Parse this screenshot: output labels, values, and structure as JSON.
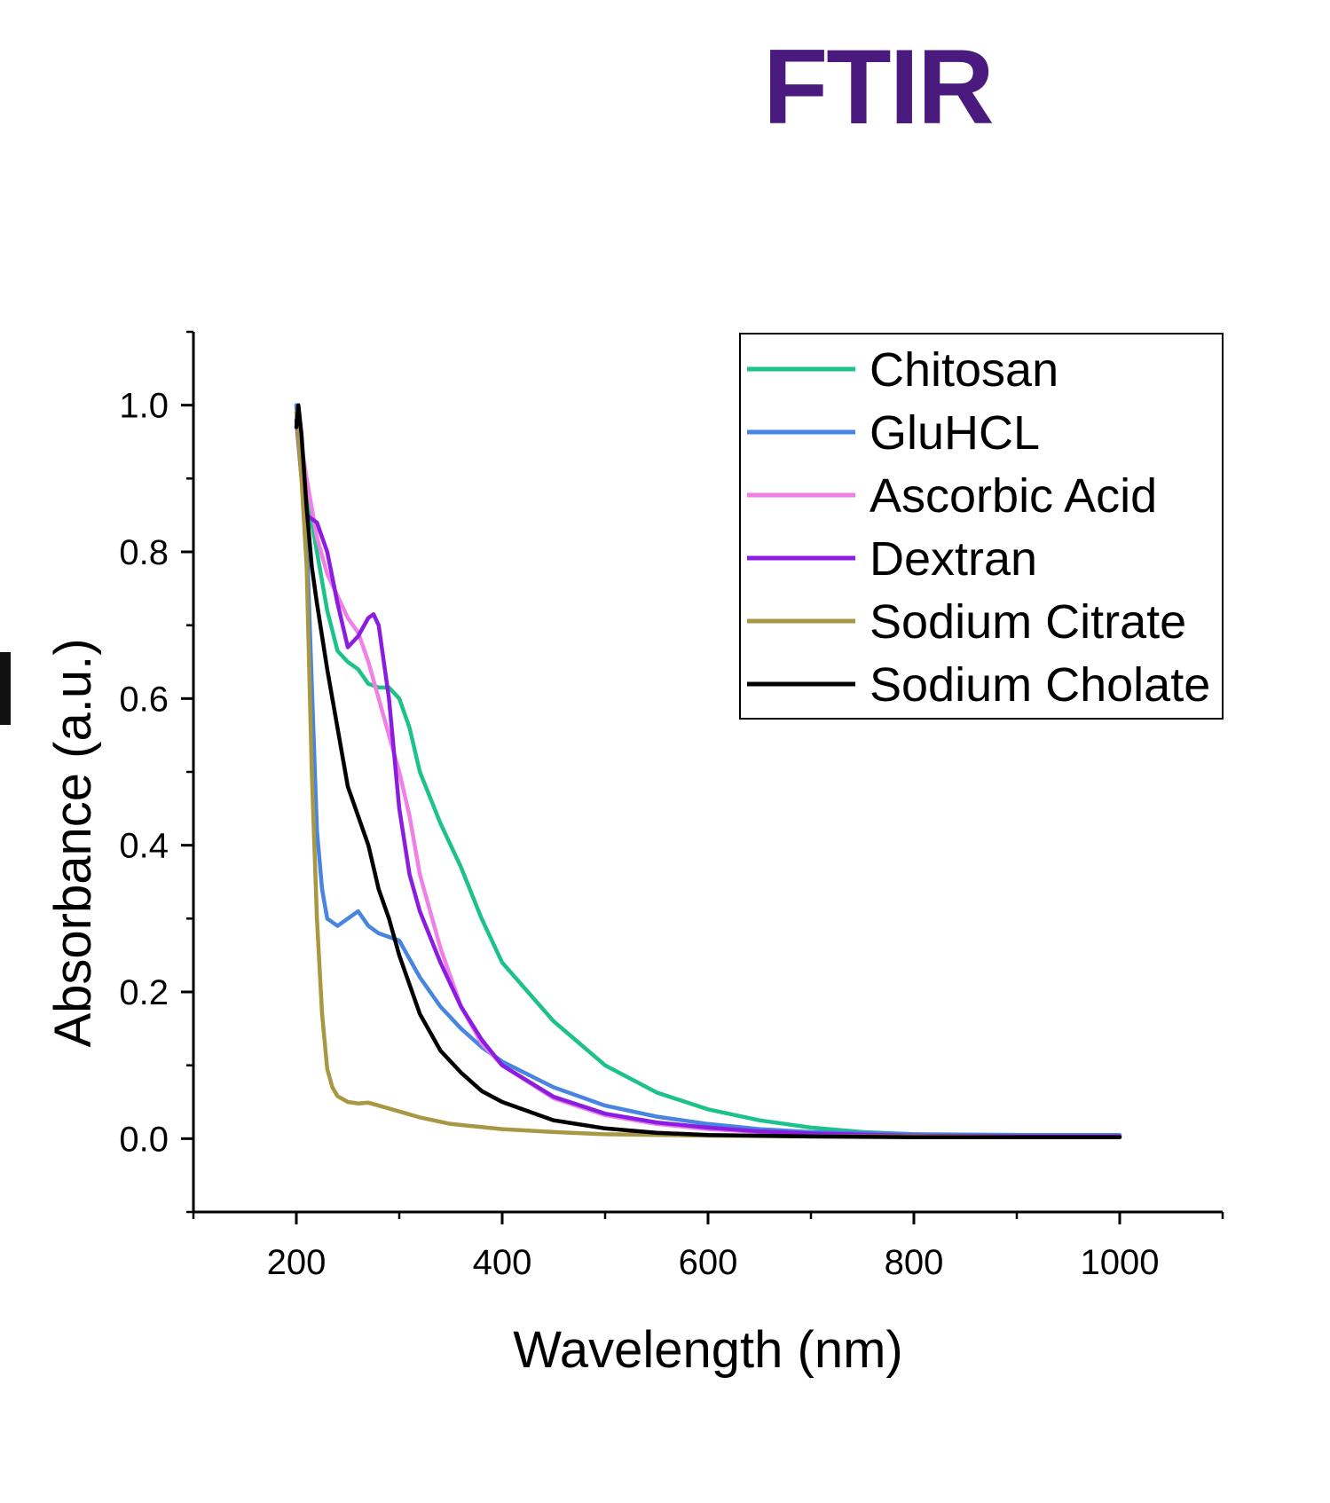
{
  "title": "FTIR",
  "colors": {
    "title": "#4b1a7f",
    "axis": "#000000"
  },
  "chart_data": {
    "type": "line",
    "xlabel": "Wavelength (nm)",
    "ylabel": "Absorbance (a.u.)",
    "xlim": [
      100,
      1100
    ],
    "ylim": [
      -0.1,
      1.1
    ],
    "xticks": [
      200,
      400,
      600,
      800,
      1000
    ],
    "xticks_minor": [
      100,
      300,
      500,
      700,
      900,
      1100
    ],
    "yticks": [
      0.0,
      0.2,
      0.4,
      0.6,
      0.8,
      1.0
    ],
    "yticks_minor": [
      -0.1,
      0.1,
      0.3,
      0.5,
      0.7,
      0.9,
      1.1
    ],
    "ytick_labels": [
      "0.0",
      "0.2",
      "0.4",
      "0.6",
      "0.8",
      "1.0"
    ],
    "xtick_labels": [
      "200",
      "400",
      "600",
      "800",
      "1000"
    ],
    "grid": false,
    "legend_position": "top-right",
    "series": [
      {
        "name": "Chitosan",
        "color": "#1dc28a",
        "x": [
          200,
          210,
          220,
          230,
          240,
          250,
          260,
          270,
          280,
          290,
          300,
          310,
          320,
          340,
          360,
          380,
          400,
          450,
          500,
          550,
          600,
          650,
          700,
          750,
          800,
          850,
          900,
          950,
          1000
        ],
        "y": [
          1.0,
          0.88,
          0.8,
          0.72,
          0.665,
          0.65,
          0.64,
          0.62,
          0.615,
          0.615,
          0.6,
          0.56,
          0.5,
          0.43,
          0.37,
          0.3,
          0.24,
          0.16,
          0.1,
          0.063,
          0.04,
          0.025,
          0.015,
          0.009,
          0.006,
          0.004,
          0.003,
          0.003,
          0.003
        ]
      },
      {
        "name": "GluHCL",
        "color": "#4785e0",
        "x": [
          200,
          205,
          210,
          215,
          220,
          225,
          230,
          240,
          250,
          260,
          270,
          280,
          290,
          300,
          310,
          320,
          340,
          360,
          380,
          400,
          450,
          500,
          550,
          600,
          650,
          700,
          800,
          900,
          1000
        ],
        "y": [
          1.0,
          0.93,
          0.82,
          0.62,
          0.42,
          0.34,
          0.3,
          0.29,
          0.3,
          0.31,
          0.29,
          0.28,
          0.275,
          0.27,
          0.245,
          0.22,
          0.18,
          0.15,
          0.125,
          0.105,
          0.07,
          0.045,
          0.03,
          0.02,
          0.013,
          0.009,
          0.006,
          0.005,
          0.005
        ]
      },
      {
        "name": "Ascorbic Acid",
        "color": "#f080e6",
        "x": [
          200,
          210,
          220,
          230,
          240,
          250,
          260,
          270,
          280,
          290,
          300,
          310,
          320,
          340,
          360,
          380,
          400,
          450,
          500,
          550,
          600,
          650,
          700,
          800,
          900,
          1000
        ],
        "y": [
          0.99,
          0.9,
          0.82,
          0.77,
          0.74,
          0.71,
          0.69,
          0.65,
          0.6,
          0.55,
          0.5,
          0.44,
          0.36,
          0.26,
          0.18,
          0.13,
          0.1,
          0.055,
          0.032,
          0.02,
          0.013,
          0.009,
          0.006,
          0.004,
          0.003,
          0.003
        ]
      },
      {
        "name": "Dextran",
        "color": "#8a1de0",
        "x": [
          200,
          205,
          210,
          215,
          220,
          230,
          240,
          250,
          260,
          270,
          275,
          280,
          290,
          300,
          310,
          320,
          340,
          360,
          380,
          400,
          450,
          500,
          550,
          600,
          650,
          700,
          800,
          900,
          1000
        ],
        "y": [
          0.98,
          0.9,
          0.85,
          0.845,
          0.84,
          0.8,
          0.73,
          0.67,
          0.685,
          0.71,
          0.715,
          0.7,
          0.6,
          0.45,
          0.36,
          0.31,
          0.24,
          0.18,
          0.135,
          0.1,
          0.057,
          0.034,
          0.022,
          0.015,
          0.01,
          0.007,
          0.004,
          0.003,
          0.003
        ]
      },
      {
        "name": "Sodium Citrate",
        "color": "#a89844",
        "x": [
          200,
          205,
          210,
          215,
          220,
          225,
          230,
          235,
          240,
          250,
          260,
          270,
          280,
          300,
          320,
          350,
          400,
          450,
          500,
          600,
          700,
          800,
          900,
          1000
        ],
        "y": [
          0.99,
          0.9,
          0.78,
          0.5,
          0.3,
          0.17,
          0.095,
          0.07,
          0.058,
          0.05,
          0.048,
          0.049,
          0.045,
          0.037,
          0.029,
          0.02,
          0.013,
          0.009,
          0.006,
          0.004,
          0.003,
          0.003,
          0.002,
          0.002
        ]
      },
      {
        "name": "Sodium Cholate",
        "color": "#000000",
        "x": [
          200,
          202,
          205,
          210,
          215,
          220,
          230,
          240,
          250,
          260,
          270,
          280,
          290,
          300,
          320,
          340,
          360,
          380,
          400,
          450,
          500,
          550,
          600,
          700,
          800,
          900,
          1000
        ],
        "y": [
          0.97,
          1.0,
          0.96,
          0.86,
          0.78,
          0.73,
          0.64,
          0.56,
          0.48,
          0.44,
          0.4,
          0.34,
          0.3,
          0.25,
          0.17,
          0.12,
          0.09,
          0.065,
          0.05,
          0.025,
          0.014,
          0.008,
          0.005,
          0.003,
          0.002,
          0.002,
          0.002
        ]
      }
    ]
  }
}
